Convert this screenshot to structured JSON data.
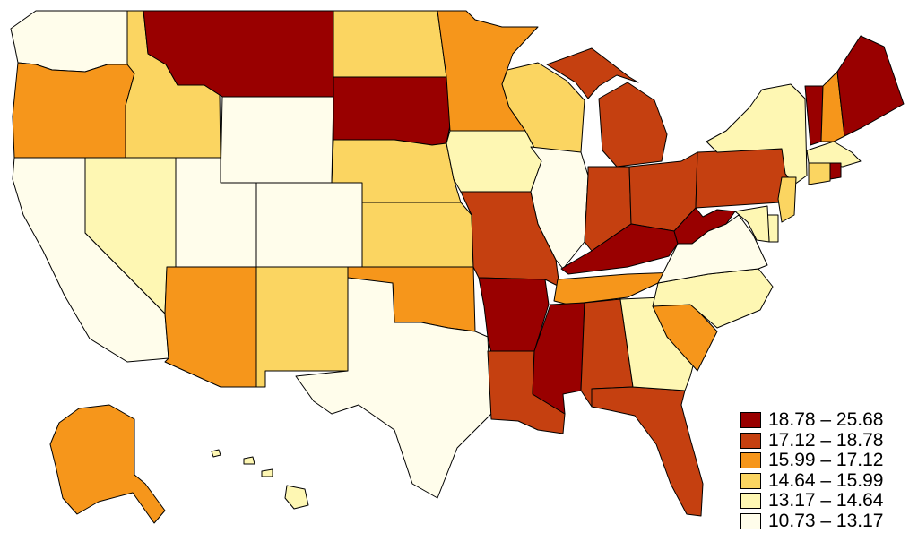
{
  "legend": {
    "items": [
      {
        "label": "18.78 – 25.68",
        "color": "#990000"
      },
      {
        "label": "17.12 – 18.78",
        "color": "#c54010"
      },
      {
        "label": "15.99 – 17.12",
        "color": "#f6961b"
      },
      {
        "label": "14.64 – 15.99",
        "color": "#fbd561"
      },
      {
        "label": "13.17 – 14.64",
        "color": "#fef7b3"
      },
      {
        "label": "10.73 – 13.17",
        "color": "#fffdeb"
      }
    ]
  },
  "states": {
    "WA": 5,
    "OR": 2,
    "CA": 5,
    "NV": 4,
    "ID": 3,
    "MT": 0,
    "WY": 5,
    "UT": 5,
    "AZ": 2,
    "CO": 5,
    "NM": 3,
    "ND": 3,
    "SD": 0,
    "NE": 3,
    "KS": 3,
    "OK": 2,
    "TX": 5,
    "MN": 2,
    "IA": 4,
    "MO": 1,
    "AR": 0,
    "LA": 1,
    "WI": 3,
    "IL": 5,
    "MI": 1,
    "IN": 1,
    "OH": 1,
    "KY": 0,
    "TN": 2,
    "MS": 0,
    "AL": 1,
    "FL": 1,
    "GA": 4,
    "SC": 2,
    "NC": 4,
    "VA": 5,
    "WV": 0,
    "PA": 1,
    "NY": 4,
    "VT": 0,
    "NH": 2,
    "ME": 0,
    "MA": 4,
    "RI": 0,
    "CT": 3,
    "NJ": 3,
    "DE": 4,
    "MD": 4,
    "AK": 2,
    "HI": 4
  }
}
